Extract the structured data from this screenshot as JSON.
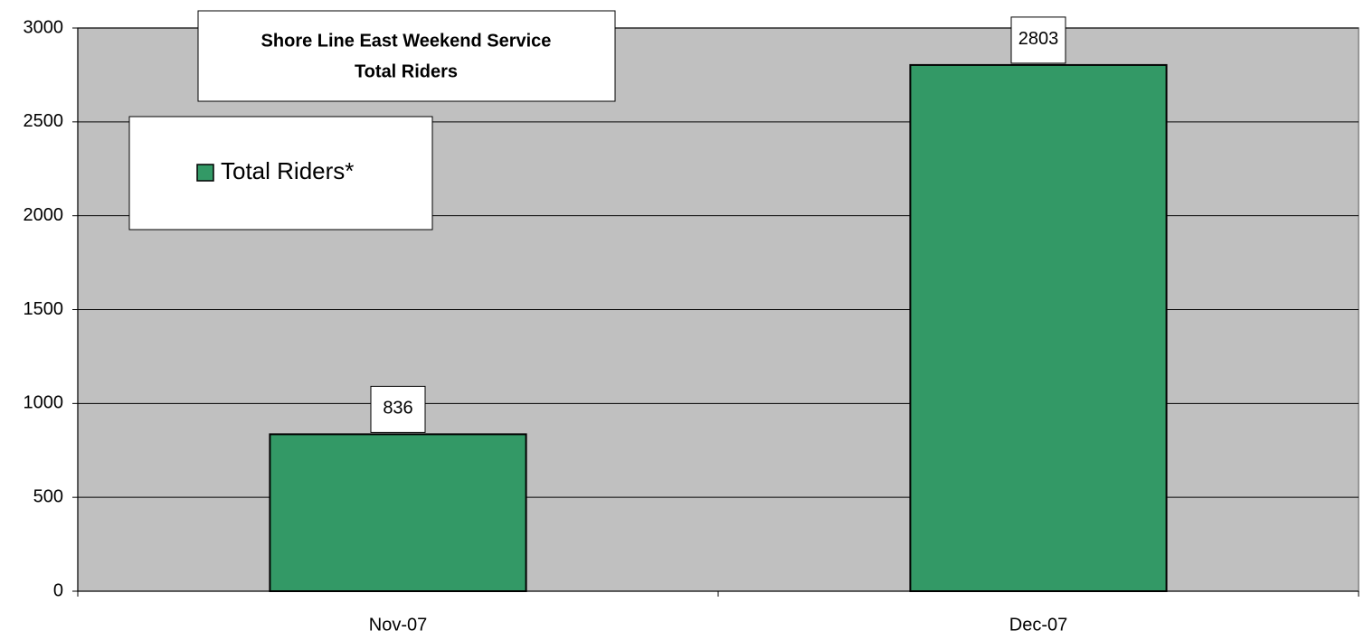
{
  "chart_data": {
    "type": "bar",
    "title": [
      "Shore Line East Weekend Service",
      "Total Riders"
    ],
    "categories": [
      "Nov-07",
      "Dec-07"
    ],
    "series": [
      {
        "name": "Total Riders*",
        "color": "#339966",
        "values": [
          836,
          2803
        ]
      }
    ],
    "ylim": [
      0,
      3000
    ],
    "yticks": [
      0,
      500,
      1000,
      1500,
      2000,
      2500,
      3000
    ],
    "grid": true,
    "legend": "top-left"
  }
}
